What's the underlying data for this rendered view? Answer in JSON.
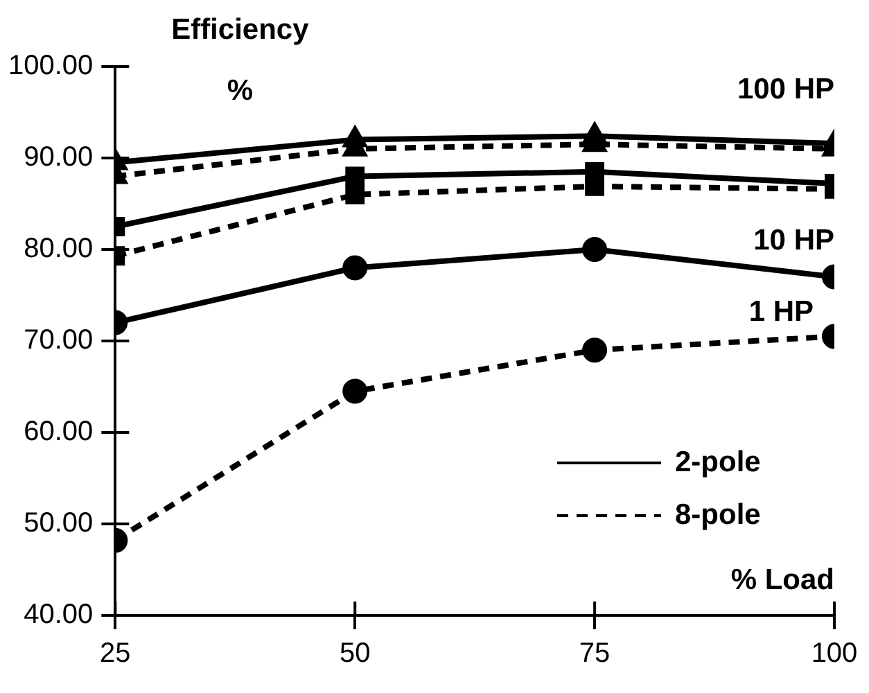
{
  "chart_data": {
    "type": "line",
    "ylabel": "Efficiency\n%",
    "xlabel": "% Load",
    "x": [
      25,
      50,
      75,
      100
    ],
    "series": [
      {
        "name": "2-pole",
        "color": "#000000",
        "marker": "triangle",
        "line_style": "solid",
        "values": [
          89.5,
          92,
          92.4,
          91.6
        ]
      },
      {
        "name": "8-pole",
        "color": "#000000",
        "marker": "triangle",
        "line_style": "dashed",
        "values": [
          88,
          91,
          91.5,
          91
        ]
      },
      {
        "color": "#000000",
        "marker": "square",
        "line_style": "solid",
        "values": [
          82.5,
          88,
          88.5,
          87.2
        ]
      },
      {
        "color": "#000000",
        "marker": "square",
        "line_style": "dashed",
        "values": [
          79.3,
          86,
          86.9,
          86.6
        ]
      },
      {
        "color": "#000000",
        "marker": "circle",
        "line_style": "solid",
        "values": [
          72,
          78,
          80,
          77
        ]
      },
      {
        "color": "#000000",
        "marker": "circle",
        "line_style": "dashed",
        "values": [
          48.2,
          64.5,
          69,
          70.5
        ]
      }
    ],
    "xlim": [
      25,
      100
    ],
    "xticks": [
      25,
      50,
      75,
      100
    ],
    "ylim": [
      40,
      100
    ],
    "yticks": [
      {
        "value": 40,
        "label": "40.00"
      },
      {
        "value": 50,
        "label": "50.00"
      },
      {
        "value": 60,
        "label": "60.00"
      },
      {
        "value": 70,
        "label": "70.00"
      },
      {
        "value": 80,
        "label": "80.00"
      },
      {
        "value": 90,
        "label": "90.00"
      },
      {
        "value": 100,
        "label": "100.00"
      }
    ],
    "annotations": [
      "100 HP",
      "10 HP",
      "1 HP"
    ],
    "grid": false,
    "legend": "bottom right"
  }
}
